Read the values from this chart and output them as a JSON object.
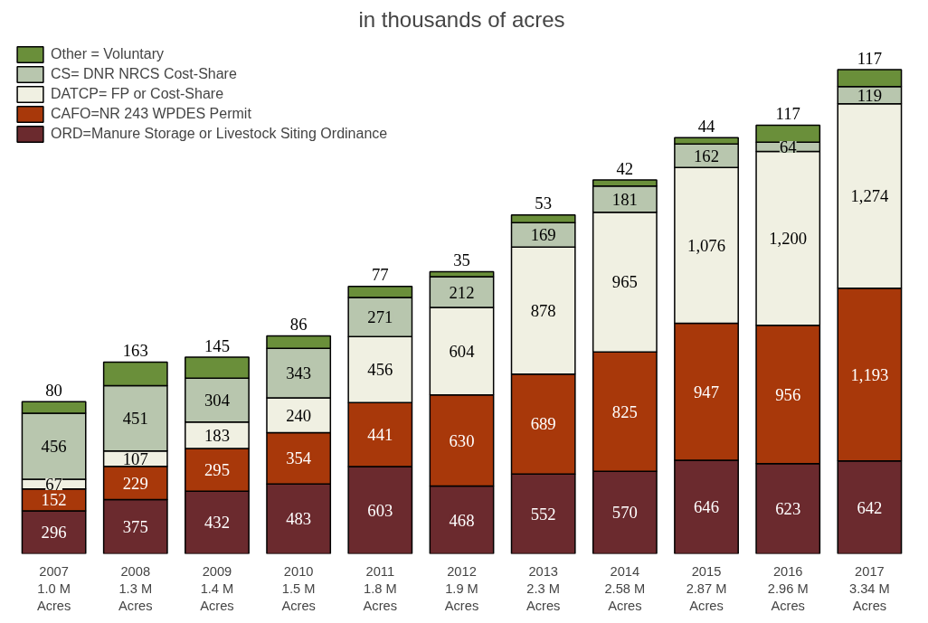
{
  "chart_data": {
    "type": "bar",
    "stacked": true,
    "title": "in thousands of acres",
    "categories": [
      "2007\n1.0 M\nAcres",
      "2008\n1.3 M\nAcres",
      "2009\n1.4 M\nAcres",
      "2010\n1.5 M\nAcres",
      "2011\n1.8 M\nAcres",
      "2012\n1.9 M\nAcres",
      "2013\n2.3 M\nAcres",
      "2014\n2.58 M\nAcres",
      "2015\n2.87 M\nAcres",
      "2016\n2.96 M\nAcres",
      "2017\n3.34 M\nAcres"
    ],
    "series": [
      {
        "name": "ORD=Manure Storage or Livestock Siting Ordinance",
        "color": "#6b2a2e",
        "values": [
          296,
          375,
          432,
          483,
          603,
          468,
          552,
          570,
          646,
          623,
          642
        ],
        "value_labels": [
          "296",
          "375",
          "432",
          "483",
          "603",
          "468",
          "552",
          "570",
          "646",
          "623",
          "642"
        ]
      },
      {
        "name": "CAFO=NR 243 WPDES Permit",
        "color": "#a8380a",
        "values": [
          152,
          229,
          295,
          354,
          441,
          630,
          689,
          825,
          947,
          956,
          1193
        ],
        "value_labels": [
          "152",
          "229",
          "295",
          "354",
          "441",
          "630",
          "689",
          "825",
          "947",
          "956",
          "1,193"
        ]
      },
      {
        "name": "DATCP= FP or Cost-Share",
        "color": "#f0f0e2",
        "values": [
          67,
          107,
          183,
          240,
          456,
          604,
          878,
          965,
          1076,
          1200,
          1274
        ],
        "value_labels": [
          "67",
          "107",
          "183",
          "240",
          "456",
          "604",
          "878",
          "965",
          "1,076",
          "1,200",
          "1,274"
        ]
      },
      {
        "name": "CS= DNR NRCS Cost-Share",
        "color": "#b8c6ae",
        "values": [
          456,
          451,
          304,
          343,
          271,
          212,
          169,
          181,
          162,
          64,
          119
        ],
        "value_labels": [
          "456",
          "451",
          "304",
          "343",
          "271",
          "212",
          "169",
          "181",
          "162",
          "64",
          "119"
        ]
      },
      {
        "name": "Other = Voluntary",
        "color": "#6a8f3a",
        "values": [
          80,
          163,
          145,
          86,
          77,
          35,
          53,
          42,
          44,
          117,
          117
        ],
        "value_labels": [
          "80",
          "163",
          "145",
          "86",
          "77",
          "35",
          "53",
          "42",
          "44",
          "117",
          "117"
        ]
      }
    ],
    "legend": "top left",
    "grid": false,
    "tick_labels": "x"
  }
}
